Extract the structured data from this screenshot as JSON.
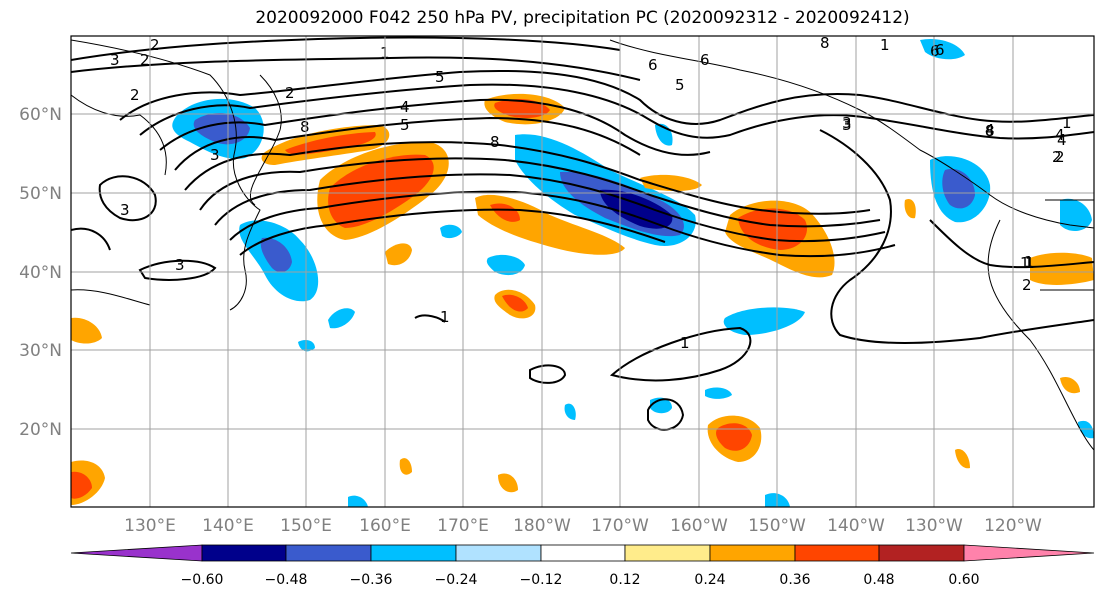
{
  "title": "2020092000 F042 250 hPa PV, precipitation PC (2020092312 - 2020092412)",
  "lat_labels": [
    "60°N",
    "50°N",
    "40°N",
    "30°N",
    "20°N"
  ],
  "lon_labels": [
    "130°E",
    "140°E",
    "150°E",
    "160°E",
    "170°E",
    "180°W",
    "170°W",
    "160°W",
    "150°W",
    "140°W",
    "130°W",
    "120°W"
  ],
  "colorbar": {
    "ticks": [
      "−0.60",
      "−0.48",
      "−0.36",
      "−0.24",
      "−0.12",
      "0.12",
      "0.24",
      "0.36",
      "0.48",
      "0.60"
    ],
    "colors": [
      "#9932cc",
      "#00008b",
      "#3a5bcd",
      "#00bfff",
      "#b0e2ff",
      "#ffffff",
      "#ffec8b",
      "#ffa500",
      "#ff4500",
      "#b22222",
      "#ff82ab"
    ]
  },
  "contour_labels": [
    "1",
    "2",
    "3",
    "4",
    "5",
    "6",
    "8",
    "1",
    "2",
    "3",
    "5",
    "6",
    "8",
    "1",
    "2",
    "3",
    "4",
    "5",
    "6",
    "8",
    "1",
    "2",
    "3",
    "1",
    "2",
    "1",
    "3",
    "8",
    "1",
    "2",
    "3",
    "4",
    "6",
    "8",
    "1",
    "4",
    "2"
  ],
  "colors": {
    "positive_strong": "#ff4500",
    "positive": "#ffa500",
    "positive_weak": "#ffec8b",
    "negative_weak": "#b0e2ff",
    "negative": "#00bfff",
    "negative_strong": "#3a5bcd",
    "negative_max": "#00008b",
    "contour": "#000000",
    "grid": "#a0a0a0"
  }
}
